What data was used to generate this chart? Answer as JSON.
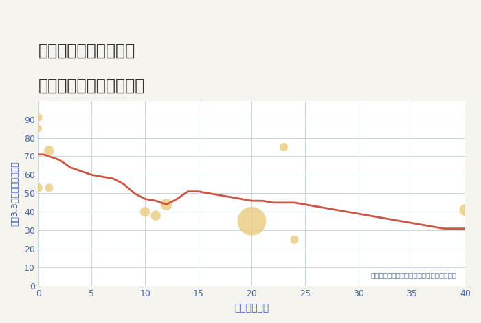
{
  "title_line1": "埼玉県熊谷市三ヶ尻の",
  "title_line2": "築年数別中古戸建て価格",
  "xlabel": "築年数（年）",
  "ylabel": "坪（3.3㎡）単価（万円）",
  "bg_color": "#f5f4ee",
  "plot_bg_color": "#ffffff",
  "line_x": [
    0,
    0.5,
    1,
    1.5,
    2,
    3,
    4,
    5,
    6,
    7,
    8,
    9,
    10,
    11,
    12,
    13,
    14,
    15,
    16,
    17,
    18,
    19,
    20,
    21,
    22,
    23,
    24,
    25,
    26,
    27,
    28,
    29,
    30,
    31,
    32,
    33,
    34,
    35,
    36,
    37,
    38,
    39,
    40
  ],
  "line_y": [
    71,
    71,
    70,
    69,
    68,
    64,
    62,
    60,
    59,
    58,
    55,
    50,
    47,
    46,
    44,
    47,
    51,
    51,
    50,
    49,
    48,
    47,
    46,
    46,
    45,
    45,
    45,
    44,
    43,
    42,
    41,
    40,
    39,
    38,
    37,
    36,
    35,
    34,
    33,
    32,
    31,
    31,
    31
  ],
  "line_color": "#cc5544",
  "scatter_x": [
    0,
    0,
    0,
    1,
    1,
    10,
    11,
    12,
    20,
    23,
    24,
    40
  ],
  "scatter_y": [
    91,
    85,
    53,
    73,
    53,
    40,
    38,
    44,
    35,
    75,
    25,
    41
  ],
  "scatter_sizes": [
    70,
    55,
    85,
    110,
    75,
    110,
    110,
    150,
    900,
    75,
    75,
    150
  ],
  "scatter_color": "#e8c97a",
  "scatter_alpha": 0.78,
  "annotation": "円の大きさは、取引のあった物件面積を示す",
  "annotation_color": "#5577aa",
  "grid_color": "#b8cce0",
  "tick_color": "#4466aa",
  "label_color": "#4466aa",
  "xlim": [
    0,
    40
  ],
  "ylim": [
    0,
    100
  ],
  "xticks": [
    0,
    5,
    10,
    15,
    20,
    25,
    30,
    35,
    40
  ],
  "yticks": [
    0,
    10,
    20,
    30,
    40,
    50,
    60,
    70,
    80,
    90
  ]
}
